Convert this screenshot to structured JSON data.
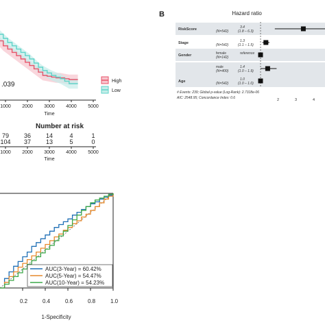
{
  "panel_b": {
    "label": "B"
  },
  "chart_data": [
    {
      "type": "line",
      "panel": "A (survival, cropped)",
      "pvalue_text": ".039",
      "xlabel": "Time",
      "x_ticks": [
        "1000",
        "2000",
        "3000",
        "4000",
        "5000"
      ],
      "xlim": [
        500,
        5000
      ],
      "ylim": [
        0,
        1
      ],
      "legend": [
        "High",
        "Low"
      ],
      "legend_position": "right",
      "series": [
        {
          "name": "High",
          "color": "#e8546a",
          "x": [
            500,
            700,
            900,
            1100,
            1300,
            1500,
            1700,
            1900,
            2100,
            2300,
            2500,
            2700,
            2900,
            3100,
            3300,
            3500,
            3700,
            3900,
            4100,
            4300
          ],
          "y": [
            0.78,
            0.72,
            0.66,
            0.62,
            0.58,
            0.54,
            0.5,
            0.46,
            0.42,
            0.38,
            0.34,
            0.3,
            0.29,
            0.28,
            0.27,
            0.27,
            0.26,
            0.25,
            0.25,
            0.25
          ]
        },
        {
          "name": "Low",
          "color": "#5ed3c8",
          "x": [
            500,
            700,
            900,
            1100,
            1300,
            1500,
            1700,
            1900,
            2100,
            2300,
            2500,
            2700,
            2900,
            3100,
            3300,
            3500,
            3700,
            3900,
            4100,
            4300
          ],
          "y": [
            0.85,
            0.8,
            0.75,
            0.7,
            0.66,
            0.62,
            0.58,
            0.54,
            0.5,
            0.45,
            0.4,
            0.36,
            0.33,
            0.3,
            0.28,
            0.26,
            0.23,
            0.2,
            0.2,
            0.2
          ]
        }
      ]
    },
    {
      "type": "table",
      "title": "Number at risk",
      "xlabel": "Time",
      "x_ticks": [
        "1000",
        "2000",
        "3000",
        "4000",
        "5000"
      ],
      "rows": [
        {
          "name": "High",
          "color": "#e8546a",
          "values": [
            "79",
            "36",
            "14",
            "4",
            "1"
          ]
        },
        {
          "name": "Low",
          "color": "#5ed3c8",
          "values": [
            "104",
            "37",
            "13",
            "5",
            "0"
          ]
        }
      ]
    },
    {
      "type": "scatter",
      "title": "Hazard ratio",
      "subtype": "forest",
      "xlim": [
        0.8,
        5
      ],
      "x_ticks": [
        "2",
        "3",
        "4"
      ],
      "reference_line": 1,
      "rows": [
        {
          "variable": "RiskScore",
          "n": "(N=542)",
          "level": "",
          "hr": 3.4,
          "ci": [
            1.8,
            6.3
          ],
          "hr_text": "3.4",
          "ci_text": "(1.8 – 6.3)"
        },
        {
          "variable": "Stage",
          "n": "(N=542)",
          "level": "",
          "hr": 1.3,
          "ci": [
            1.1,
            1.5
          ],
          "hr_text": "1.3",
          "ci_text": "(1.1 – 1.5)"
        },
        {
          "variable": "Gender",
          "n": "(N=142)",
          "level": "female",
          "hr": 1.0,
          "ci": [
            1.0,
            1.0
          ],
          "hr_text": "reference",
          "ci_text": ""
        },
        {
          "variable": "",
          "n": "(N=400)",
          "level": "male",
          "hr": 1.4,
          "ci": [
            1.0,
            1.9
          ],
          "hr_text": "1.4",
          "ci_text": "(1.0 – 1.9)"
        },
        {
          "variable": "Age",
          "n": "(N=542)",
          "level": "",
          "hr": 1.0,
          "ci": [
            1.0,
            1.0
          ],
          "hr_text": "1.0",
          "ci_text": "(1.0 – 1.0)"
        }
      ],
      "footnote1": "# Events: 239; Global p-value (Log-Rank): 2.7318e-06",
      "footnote2": "AIC: 2548.95; Concordance Index: 0.6"
    },
    {
      "type": "line",
      "subtype": "roc",
      "xlabel": "1-Specificity",
      "x_ticks": [
        "0.2",
        "0.4",
        "0.6",
        "0.8",
        "1.0"
      ],
      "xlim": [
        0,
        1
      ],
      "ylim": [
        0,
        1
      ],
      "legend_position": "bottom-right",
      "series": [
        {
          "name": "AUC(3-Year) = 60.42%",
          "color": "#1f6fb5",
          "x": [
            0,
            0.04,
            0.08,
            0.12,
            0.16,
            0.2,
            0.24,
            0.28,
            0.32,
            0.36,
            0.4,
            0.44,
            0.48,
            0.52,
            0.56,
            0.6,
            0.64,
            0.68,
            0.72,
            0.76,
            0.8,
            0.84,
            0.88,
            0.92,
            0.96,
            1.0
          ],
          "y": [
            0,
            0.1,
            0.17,
            0.23,
            0.28,
            0.33,
            0.38,
            0.44,
            0.48,
            0.52,
            0.56,
            0.6,
            0.64,
            0.67,
            0.7,
            0.73,
            0.77,
            0.8,
            0.83,
            0.86,
            0.89,
            0.91,
            0.94,
            0.96,
            0.98,
            1.0
          ]
        },
        {
          "name": "AUC(5-Year) = 54.47%",
          "color": "#e6892b",
          "x": [
            0,
            0.04,
            0.08,
            0.12,
            0.16,
            0.2,
            0.24,
            0.28,
            0.32,
            0.36,
            0.4,
            0.44,
            0.48,
            0.52,
            0.56,
            0.6,
            0.64,
            0.68,
            0.72,
            0.76,
            0.8,
            0.84,
            0.88,
            0.92,
            0.96,
            1.0
          ],
          "y": [
            0,
            0.06,
            0.12,
            0.17,
            0.22,
            0.26,
            0.3,
            0.34,
            0.38,
            0.42,
            0.46,
            0.5,
            0.54,
            0.57,
            0.61,
            0.64,
            0.68,
            0.71,
            0.75,
            0.78,
            0.82,
            0.86,
            0.9,
            0.94,
            0.97,
            1.0
          ]
        },
        {
          "name": "AUC(10-Year) = 54.23%",
          "color": "#3ca848",
          "x": [
            0,
            0.04,
            0.08,
            0.12,
            0.16,
            0.2,
            0.24,
            0.28,
            0.32,
            0.36,
            0.4,
            0.44,
            0.48,
            0.52,
            0.56,
            0.6,
            0.64,
            0.68,
            0.72,
            0.76,
            0.8,
            0.84,
            0.88,
            0.92,
            0.96,
            1.0
          ],
          "y": [
            0,
            0.04,
            0.08,
            0.12,
            0.16,
            0.2,
            0.25,
            0.29,
            0.33,
            0.37,
            0.41,
            0.45,
            0.5,
            0.55,
            0.6,
            0.66,
            0.72,
            0.77,
            0.82,
            0.86,
            0.9,
            0.93,
            0.95,
            0.97,
            0.99,
            1.0
          ]
        }
      ]
    }
  ]
}
